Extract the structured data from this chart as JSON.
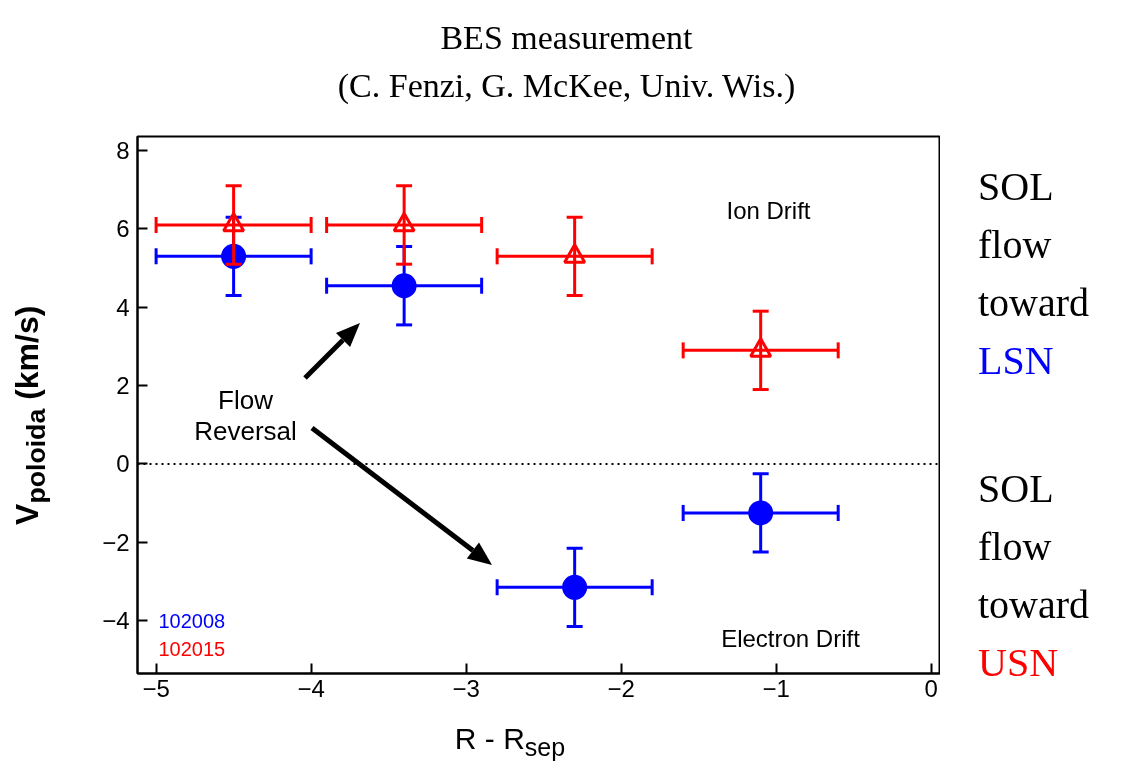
{
  "chart_data": {
    "type": "scatter",
    "title": "BES measurement",
    "subtitle": "(C. Fenzi, G. McKee, Univ. Wis.)",
    "xlabel": "R - R$_{sep}$",
    "ylabel": "V$_{poloida}$ (km/s)",
    "xlim": [
      -5.12,
      0.06
    ],
    "ylim": [
      -5.35,
      8.36
    ],
    "xticks": [
      -5,
      -4,
      -3,
      -2,
      -1,
      0
    ],
    "yticks": [
      -4,
      -2,
      0,
      2,
      4,
      6,
      8
    ],
    "grid": false,
    "legend": "bottom left",
    "series": [
      {
        "name": "102008",
        "color": "#0000ff",
        "marker": "circle",
        "x": [
          -4.5,
          -3.4,
          -2.3,
          -1.1
        ],
        "values": [
          5.3,
          4.55,
          -3.15,
          -1.25
        ],
        "errors": [
          1,
          1,
          1,
          1
        ],
        "xerrors": [
          0.5,
          0.5,
          0.5,
          0.5
        ]
      },
      {
        "name": "102015",
        "color": "#ff0000",
        "marker": "triangle",
        "x": [
          -4.5,
          -3.4,
          -2.3,
          -1.1
        ],
        "values": [
          6.1,
          6.1,
          5.3,
          2.9
        ],
        "errors": [
          1,
          1,
          1,
          1
        ],
        "xerrors": [
          0.5,
          0.5,
          0.5,
          0.5
        ]
      }
    ],
    "ref_lines": [
      {
        "axis": "y",
        "value": 0,
        "color": "#000000",
        "line_style": "dotted"
      }
    ],
    "annotations": [
      "Ion Drift",
      "Electron Drift",
      "Flow Reversal",
      "SOL flow toward LSN",
      "SOL flow toward USN"
    ]
  }
}
